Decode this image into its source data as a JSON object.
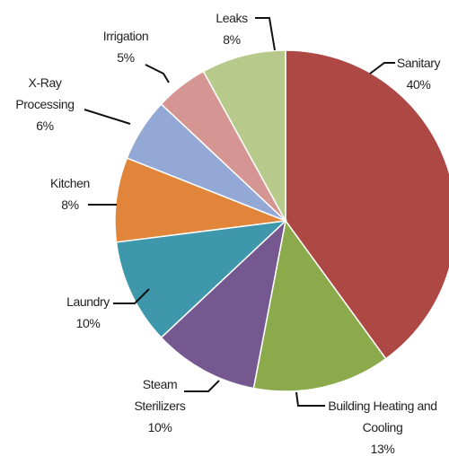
{
  "chart_data": {
    "type": "pie",
    "categories": [
      "Sanitary",
      "Building Heating and Cooling",
      "Steam Sterilizers",
      "Laundry",
      "Kitchen",
      "X-Ray Processing",
      "Irrigation",
      "Leaks"
    ],
    "values": [
      40,
      13,
      10,
      10,
      8,
      6,
      5,
      8
    ],
    "value_labels": [
      "40%",
      "13%",
      "10%",
      "10%",
      "8%",
      "6%",
      "5%",
      "8%"
    ],
    "colors": [
      "#ad4845",
      "#8aaa4b",
      "#765891",
      "#3f97ac",
      "#e0853a",
      "#94a8d5",
      "#d59592",
      "#b7ca8b"
    ]
  }
}
